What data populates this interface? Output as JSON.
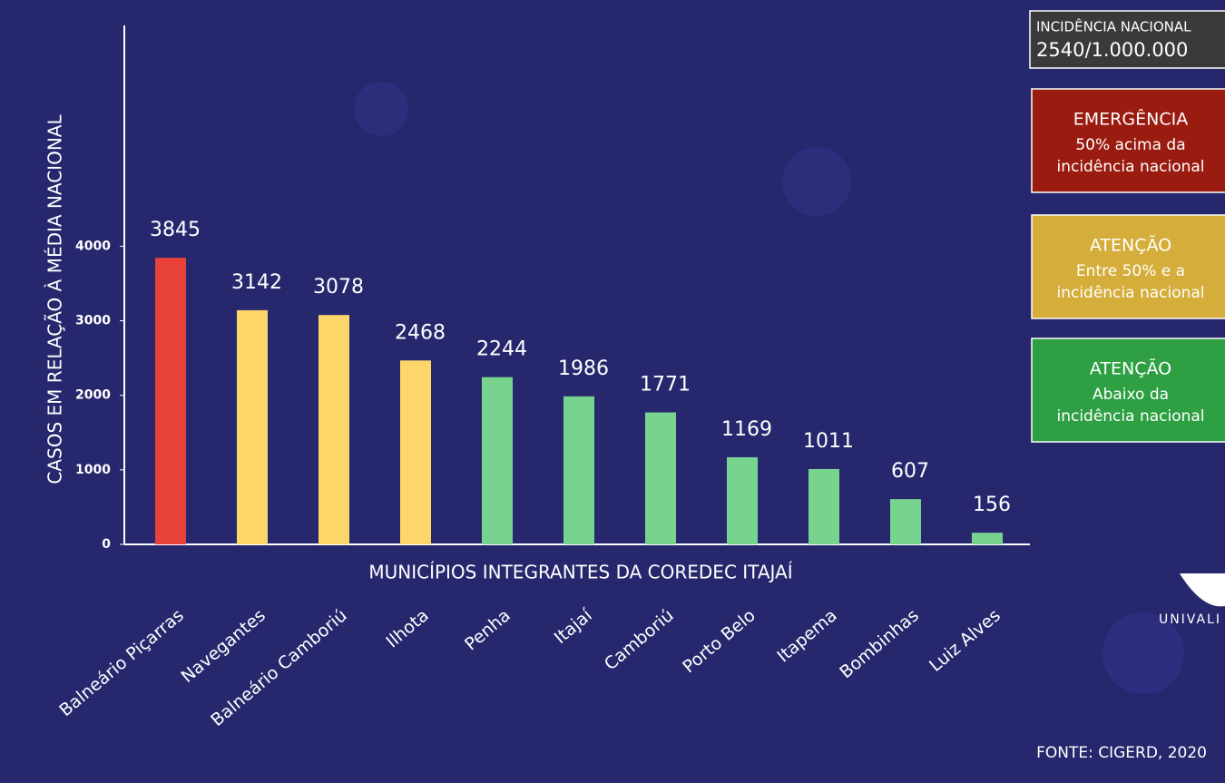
{
  "chart_data": {
    "type": "bar",
    "xlabel": "MUNICÍPIOS INTEGRANTES DA COREDEC ITAJAÍ",
    "ylabel": "CASOS EM RELAÇÃO À MÉDIA NACIONAL",
    "categories": [
      "Balneário Piçarras",
      "Navegantes",
      "Balneário Camboriú",
      "Ilhota",
      "Penha",
      "Itajaí",
      "Camboriú",
      "Porto Belo",
      "Itapema",
      "Bombinhas",
      "Luiz Alves"
    ],
    "values": [
      3845,
      3142,
      3078,
      2468,
      2244,
      1986,
      1771,
      1169,
      1011,
      607,
      156
    ],
    "colors": [
      "#e8423a",
      "#fdd66a",
      "#fdd66a",
      "#fdd66a",
      "#78d38f",
      "#78d38f",
      "#78d38f",
      "#78d38f",
      "#78d38f",
      "#78d38f",
      "#78d38f"
    ],
    "ylim": [
      0,
      7000
    ],
    "yticks": [
      0,
      1000,
      2000,
      3000,
      4000
    ],
    "grid": false
  },
  "info_box": {
    "label": "INCIDÊNCIA NACIONAL",
    "value": "2540/1.000.000"
  },
  "legend_boxes": [
    {
      "title": "EMERGÊNCIA",
      "lines": [
        "50% acima da",
        "incidência nacional"
      ],
      "color": "#9a1b10"
    },
    {
      "title": "ATENÇÃO",
      "lines": [
        "Entre 50% e a",
        "incidência nacional"
      ],
      "color": "#d4ad3a"
    },
    {
      "title": "ATENÇÃO",
      "lines": [
        "Abaixo da",
        "incidência nacional"
      ],
      "color": "#2ea043"
    }
  ],
  "logo": "UNIVALI",
  "source": "FONTE: CIGERD, 2020"
}
